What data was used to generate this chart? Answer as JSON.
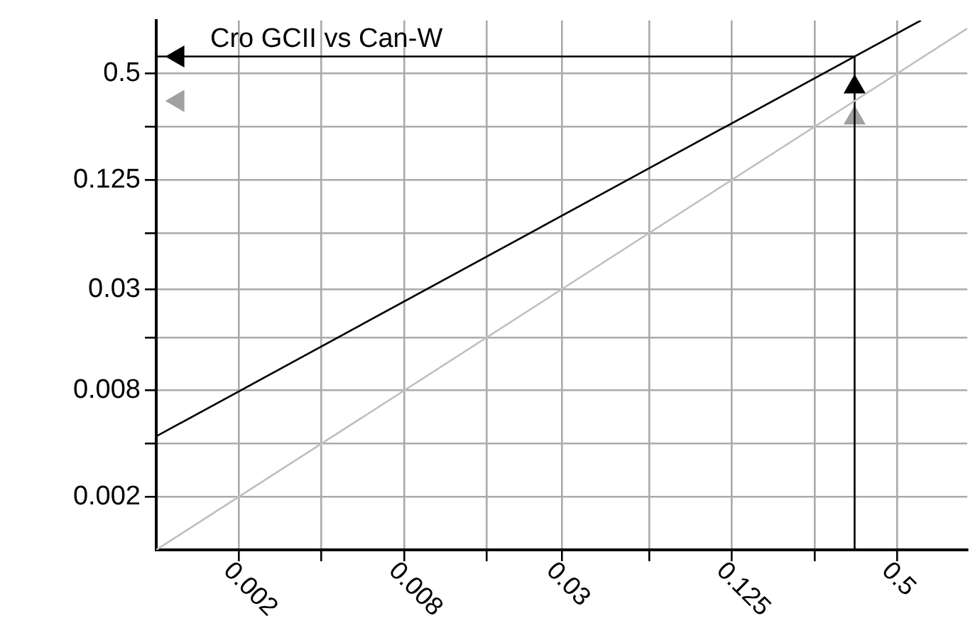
{
  "chart_data": {
    "type": "line",
    "log": "xy",
    "grid": true,
    "legend": false,
    "annotations": [
      "Cro GCII vs Can-W"
    ],
    "xlim": [
      0.001,
      0.9
    ],
    "ylim": [
      0.001,
      1
    ],
    "xticks": [
      0.002,
      {
        "value": 0.004,
        "label": null
      },
      0.008,
      {
        "value": 0.016,
        "label": null
      },
      0.03,
      {
        "value": 0.0625,
        "label": null
      },
      0.125,
      {
        "value": 0.25,
        "label": null
      },
      0.5
    ],
    "yticks": [
      0.002,
      {
        "value": 0.004,
        "label": null
      },
      0.008,
      {
        "value": 0.016,
        "label": null
      },
      0.03,
      {
        "value": 0.0625,
        "label": null
      },
      0.125,
      {
        "value": 0.25,
        "label": null
      },
      0.5
    ],
    "series": [
      {
        "color": "#000000",
        "x": [
          0.001,
          0.61
        ],
        "values": [
          0.0044,
          1
        ]
      },
      {
        "color": "#c0c0c0",
        "x": [
          0.001,
          0.9
        ],
        "values": [
          0.001,
          0.9
        ]
      },
      {
        "color": "#000000",
        "x": [
          0.35,
          0.35,
          0.001
        ],
        "values": [
          0.001,
          0.625,
          0.625
        ]
      },
      {
        "type": "scatter",
        "marker": "triangle",
        "color": "#000000",
        "x": [
          0.35,
          0.0012
        ],
        "values": [
          0.42,
          0.625
        ]
      },
      {
        "type": "scatter",
        "marker": "triangle",
        "color": "#a0a0a0",
        "x": [
          0.35,
          0.0012
        ],
        "values": [
          0.28,
          0.35
        ]
      }
    ]
  }
}
